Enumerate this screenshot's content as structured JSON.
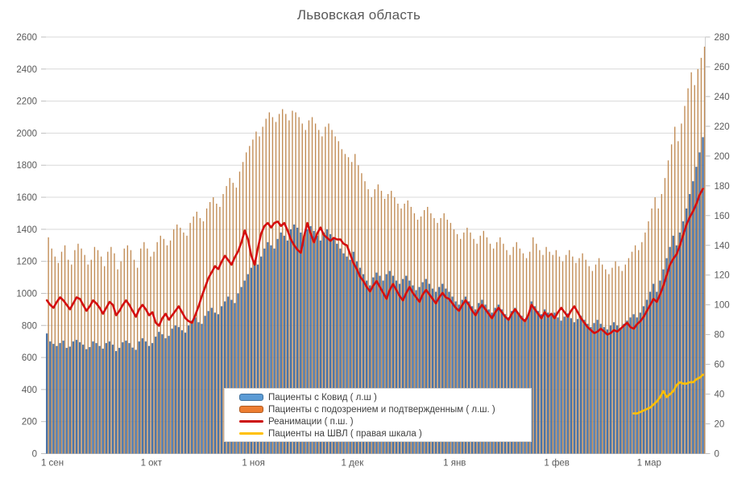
{
  "chart_data": {
    "type": "bar+line",
    "title": "Львовская область",
    "legend_position": "bottom-center-overlay",
    "grid": true,
    "left_axis": {
      "min": 0,
      "max": 2600,
      "step": 200,
      "ticks": [
        0,
        200,
        400,
        600,
        800,
        1000,
        1200,
        1400,
        1600,
        1800,
        2000,
        2200,
        2400,
        2600
      ]
    },
    "right_axis": {
      "min": 0,
      "max": 280,
      "step": 20,
      "ticks": [
        0,
        20,
        40,
        60,
        80,
        100,
        120,
        140,
        160,
        180,
        200,
        220,
        240,
        260,
        280
      ]
    },
    "x_ticks": [
      {
        "day": 0,
        "label": "1 сен"
      },
      {
        "day": 30,
        "label": "1 окт"
      },
      {
        "day": 61,
        "label": "1 ноя"
      },
      {
        "day": 91,
        "label": "1 дек"
      },
      {
        "day": 122,
        "label": "1 янв"
      },
      {
        "day": 153,
        "label": "1 фев"
      },
      {
        "day": 181,
        "label": "1 мар"
      }
    ],
    "days_total": 200,
    "series": [
      {
        "name": "Пациенты с Ковид ( л.ш )",
        "type": "bar",
        "axis": "left",
        "color": "#4a74a8",
        "legend_color": "#5B9BD5",
        "start_day": 0,
        "values": [
          750,
          700,
          685,
          672,
          690,
          705,
          660,
          668,
          700,
          710,
          695,
          680,
          652,
          665,
          700,
          690,
          672,
          655,
          690,
          700,
          680,
          640,
          660,
          695,
          705,
          690,
          662,
          648,
          700,
          720,
          700,
          672,
          690,
          730,
          760,
          745,
          720,
          735,
          780,
          800,
          790,
          770,
          755,
          800,
          830,
          850,
          820,
          810,
          860,
          890,
          910,
          880,
          870,
          920,
          950,
          980,
          960,
          940,
          1000,
          1040,
          1080,
          1120,
          1160,
          1200,
          1180,
          1230,
          1280,
          1320,
          1300,
          1280,
          1340,
          1380,
          1360,
          1330,
          1400,
          1430,
          1410,
          1380,
          1350,
          1400,
          1420,
          1390,
          1360,
          1330,
          1380,
          1400,
          1370,
          1340,
          1310,
          1280,
          1250,
          1230,
          1210,
          1260,
          1200,
          1160,
          1120,
          1080,
          1050,
          1100,
          1130,
          1110,
          1080,
          1120,
          1140,
          1110,
          1080,
          1060,
          1090,
          1110,
          1080,
          1050,
          1020,
          1040,
          1070,
          1090,
          1060,
          1030,
          1010,
          1040,
          1060,
          1030,
          1010,
          980,
          950,
          930,
          960,
          980,
          950,
          920,
          900,
          940,
          960,
          930,
          900,
          880,
          910,
          930,
          900,
          870,
          850,
          890,
          910,
          880,
          860,
          840,
          870,
          950,
          920,
          890,
          870,
          900,
          880,
          860,
          880,
          850,
          830,
          855,
          875,
          845,
          820,
          840,
          860,
          835,
          810,
          790,
          815,
          835,
          810,
          790,
          775,
          800,
          820,
          800,
          785,
          810,
          830,
          850,
          870,
          850,
          880,
          920,
          960,
          1010,
          1060,
          1010,
          1080,
          1150,
          1220,
          1290,
          1360,
          1300,
          1380,
          1450,
          1530,
          1620,
          1700,
          1790,
          1880,
          1975
        ]
      },
      {
        "name": "Пациенты с подозрением и подтвержденным ( л.ш. )",
        "type": "bar",
        "axis": "left",
        "color": "#c08a52",
        "legend_color": "#ED7D31",
        "start_day": 0,
        "values": [
          1350,
          1280,
          1230,
          1190,
          1260,
          1300,
          1210,
          1180,
          1270,
          1310,
          1280,
          1240,
          1180,
          1210,
          1290,
          1270,
          1230,
          1170,
          1260,
          1290,
          1250,
          1150,
          1200,
          1280,
          1300,
          1270,
          1210,
          1160,
          1280,
          1320,
          1280,
          1230,
          1260,
          1320,
          1360,
          1340,
          1300,
          1330,
          1400,
          1430,
          1410,
          1380,
          1360,
          1440,
          1480,
          1510,
          1470,
          1450,
          1530,
          1570,
          1600,
          1560,
          1540,
          1620,
          1670,
          1720,
          1690,
          1660,
          1760,
          1820,
          1880,
          1920,
          1960,
          2010,
          1980,
          2040,
          2090,
          2130,
          2100,
          2070,
          2120,
          2150,
          2120,
          2080,
          2140,
          2130,
          2100,
          2060,
          2020,
          2080,
          2100,
          2060,
          2020,
          1980,
          2040,
          2060,
          2020,
          1980,
          1950,
          1900,
          1870,
          1850,
          1820,
          1870,
          1800,
          1750,
          1700,
          1650,
          1600,
          1650,
          1680,
          1640,
          1590,
          1620,
          1640,
          1600,
          1560,
          1530,
          1560,
          1580,
          1540,
          1500,
          1460,
          1480,
          1520,
          1540,
          1500,
          1470,
          1440,
          1470,
          1500,
          1460,
          1440,
          1400,
          1370,
          1340,
          1380,
          1410,
          1380,
          1340,
          1310,
          1360,
          1390,
          1350,
          1310,
          1280,
          1320,
          1350,
          1310,
          1270,
          1240,
          1290,
          1320,
          1280,
          1250,
          1220,
          1260,
          1350,
          1310,
          1270,
          1240,
          1290,
          1260,
          1240,
          1270,
          1230,
          1200,
          1240,
          1270,
          1230,
          1190,
          1220,
          1250,
          1210,
          1170,
          1140,
          1180,
          1220,
          1180,
          1150,
          1120,
          1160,
          1200,
          1170,
          1140,
          1180,
          1220,
          1260,
          1300,
          1270,
          1320,
          1380,
          1450,
          1530,
          1600,
          1530,
          1620,
          1720,
          1830,
          1930,
          2040,
          1950,
          2060,
          2170,
          2280,
          2380,
          2300,
          2400,
          2470,
          2540
        ]
      },
      {
        "name": "Реанимации ( п.ш. )",
        "type": "line",
        "axis": "right",
        "color": "#d40f0f",
        "legend_color": "#CC0A0A",
        "start_day": 0,
        "values": [
          103,
          100,
          98,
          102,
          105,
          103,
          100,
          97,
          101,
          105,
          104,
          100,
          96,
          99,
          103,
          101,
          98,
          94,
          98,
          102,
          100,
          93,
          96,
          100,
          103,
          100,
          96,
          92,
          97,
          100,
          97,
          93,
          95,
          88,
          86,
          91,
          94,
          90,
          93,
          96,
          99,
          95,
          91,
          89,
          88,
          93,
          99,
          106,
          112,
          118,
          122,
          126,
          124,
          129,
          133,
          130,
          127,
          132,
          136,
          142,
          150,
          144,
          133,
          127,
          138,
          148,
          153,
          155,
          152,
          155,
          156,
          153,
          155,
          150,
          144,
          140,
          137,
          135,
          146,
          155,
          148,
          142,
          148,
          152,
          147,
          145,
          143,
          145,
          144,
          144,
          141,
          140,
          134,
          128,
          124,
          119,
          116,
          112,
          109,
          113,
          116,
          112,
          108,
          104,
          110,
          114,
          110,
          106,
          103,
          108,
          112,
          108,
          105,
          102,
          107,
          110,
          107,
          104,
          101,
          105,
          108,
          105,
          104,
          101,
          98,
          96,
          100,
          103,
          100,
          96,
          93,
          97,
          100,
          97,
          94,
          91,
          95,
          98,
          95,
          92,
          90,
          94,
          97,
          94,
          91,
          89,
          93,
          100,
          97,
          94,
          91,
          95,
          92,
          94,
          91,
          95,
          98,
          95,
          92,
          96,
          99,
          95,
          91,
          88,
          85,
          83,
          81,
          82,
          84,
          82,
          80,
          81,
          83,
          82,
          84,
          86,
          88,
          85,
          84,
          87,
          89,
          92,
          96,
          100,
          104,
          102,
          107,
          113,
          120,
          127,
          131,
          134,
          140,
          147,
          154,
          159,
          163,
          168,
          174,
          178
        ]
      },
      {
        "name": "Пациенты на ШВЛ ( правая шкала )",
        "type": "line",
        "axis": "right",
        "color": "#FFC000",
        "legend_color": "#FFC000",
        "start_day": 178,
        "values": [
          27,
          27,
          28,
          29,
          30,
          31,
          33,
          35,
          38,
          42,
          38,
          40,
          42,
          46,
          48,
          47,
          47,
          48,
          48,
          50,
          51,
          53
        ]
      }
    ]
  }
}
